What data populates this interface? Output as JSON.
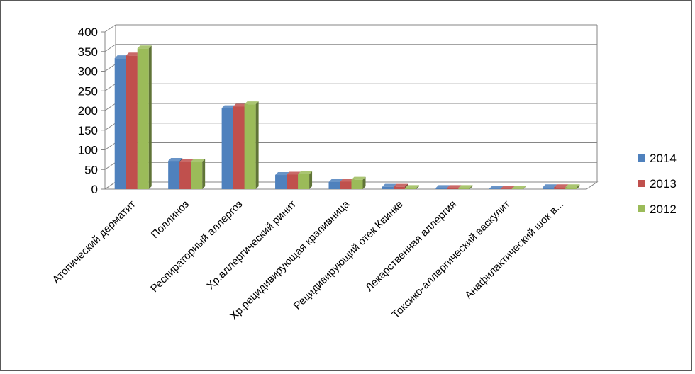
{
  "chart_data": {
    "type": "bar",
    "style": "3d-clustered-column",
    "categories": [
      "Атопический дерматит",
      "Поллиноз",
      "Респираторный аллергоз",
      "Хр.аллергический ринит",
      "Хр.рецидивирующая крапивница",
      "Рецидивирующий отек Квинке",
      "Лекарственная аллергия",
      "Токсико-аллергический васкулит",
      "Анафилактический шок в..."
    ],
    "series": [
      {
        "name": "2014",
        "color": "#4F81BD",
        "values": [
          333,
          72,
          206,
          36,
          18,
          6,
          3,
          1,
          5
        ]
      },
      {
        "name": "2013",
        "color": "#C0504D",
        "values": [
          340,
          70,
          210,
          37,
          19,
          6,
          3,
          1,
          5
        ]
      },
      {
        "name": "2012",
        "color": "#9BBB59",
        "values": [
          358,
          70,
          216,
          38,
          24,
          3,
          3,
          1,
          5
        ]
      }
    ],
    "ylim": [
      0,
      400
    ],
    "yticks": [
      0,
      50,
      100,
      150,
      200,
      250,
      300,
      350,
      400
    ],
    "ytick_labels": [
      "0",
      "50",
      "100",
      "150",
      "200",
      "250",
      "300",
      "350",
      "400"
    ],
    "grid": true,
    "legend_position": "right"
  }
}
